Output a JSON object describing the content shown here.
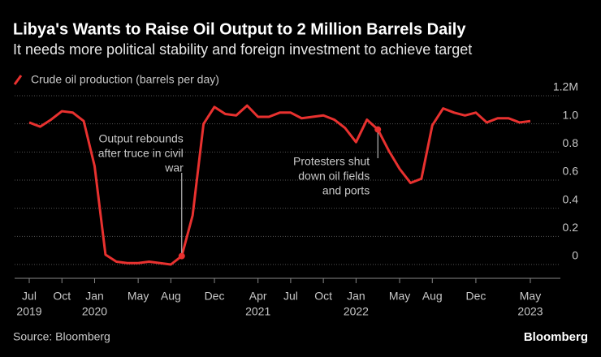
{
  "chart_data": {
    "type": "line",
    "title": "Libya's Wants to Raise Oil Output to 2 Million Barrels Daily",
    "subtitle": "It needs more political stability and foreign investment to achieve target",
    "source": "Source: Bloomberg",
    "brand": "Bloomberg",
    "x": [
      "2019-07",
      "2019-08",
      "2019-09",
      "2019-10",
      "2019-11",
      "2019-12",
      "2020-01",
      "2020-02",
      "2020-03",
      "2020-04",
      "2020-05",
      "2020-06",
      "2020-07",
      "2020-08",
      "2020-09",
      "2020-10",
      "2020-11",
      "2020-12",
      "2021-01",
      "2021-02",
      "2021-03",
      "2021-04",
      "2021-05",
      "2021-06",
      "2021-07",
      "2021-08",
      "2021-09",
      "2021-10",
      "2021-11",
      "2021-12",
      "2022-01",
      "2022-02",
      "2022-03",
      "2022-04",
      "2022-05",
      "2022-06",
      "2022-07",
      "2022-08",
      "2022-09",
      "2022-10",
      "2022-11",
      "2022-12",
      "2023-01",
      "2023-02",
      "2023-03",
      "2023-04",
      "2023-05"
    ],
    "series": [
      {
        "name": "Crude oil production (barrels per day)",
        "color": "#e8312f",
        "values": [
          1.01,
          0.98,
          1.03,
          1.09,
          1.08,
          1.02,
          0.7,
          0.07,
          0.02,
          0.01,
          0.01,
          0.02,
          0.01,
          0.0,
          0.06,
          0.35,
          1.0,
          1.12,
          1.07,
          1.06,
          1.13,
          1.05,
          1.05,
          1.08,
          1.08,
          1.04,
          1.05,
          1.06,
          1.03,
          0.97,
          0.87,
          1.03,
          0.96,
          0.81,
          0.68,
          0.58,
          0.61,
          0.99,
          1.11,
          1.08,
          1.06,
          1.08,
          1.01,
          1.04,
          1.04,
          1.01,
          1.02
        ]
      }
    ],
    "ylim": [
      0,
      1.2
    ],
    "yticks": [
      0,
      0.2,
      0.4,
      0.6,
      0.8,
      {
        "value": 1,
        "label": "1.0"
      },
      {
        "value": 1.2,
        "label": "1.2M"
      }
    ],
    "xticks": [
      {
        "value": "2019-07",
        "label": "Jul",
        "year": "2019"
      },
      {
        "value": "2019-10",
        "label": "Oct"
      },
      {
        "value": "2020-01",
        "label": "Jan",
        "year": "2020"
      },
      {
        "value": "2020-05",
        "label": "May"
      },
      {
        "value": "2020-08",
        "label": "Aug"
      },
      {
        "value": "2020-12",
        "label": "Dec"
      },
      {
        "value": "2021-04",
        "label": "Apr",
        "year": "2021"
      },
      {
        "value": "2021-07",
        "label": "Jul"
      },
      {
        "value": "2021-10",
        "label": "Oct"
      },
      {
        "value": "2022-01",
        "label": "Jan",
        "year": "2022"
      },
      {
        "value": "2022-05",
        "label": "May"
      },
      {
        "value": "2022-08",
        "label": "Aug"
      },
      {
        "value": "2022-12",
        "label": "Dec"
      },
      {
        "value": "2023-05",
        "label": "May",
        "year": "2023"
      }
    ],
    "grid": true,
    "annotations": [
      {
        "x": "2020-09",
        "lines": [
          "Output rebounds",
          "after truce in civil",
          "war"
        ]
      },
      {
        "x": "2022-03",
        "lines": [
          "Protesters shut",
          "down oil fields",
          "and ports"
        ]
      }
    ]
  }
}
